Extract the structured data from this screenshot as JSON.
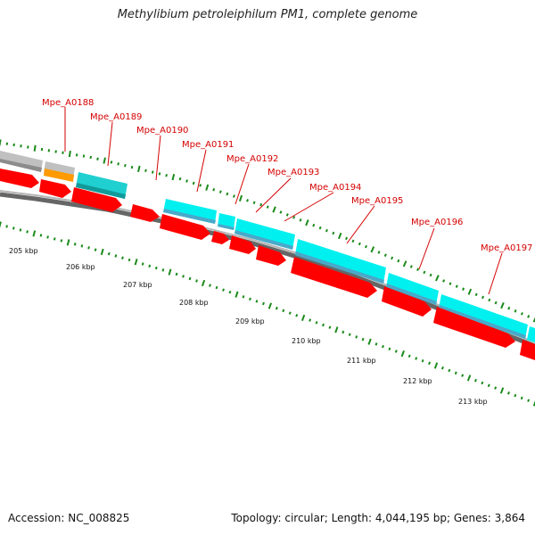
{
  "title": "Methylibium petroleiphilum PM1, complete genome",
  "footer": {
    "accession": "Accession: NC_008825",
    "summary": "Topology: circular; Length: 4,044,195 bp; Genes: 3,864"
  },
  "colors": {
    "cds": "#ff0000",
    "cyan": "#00f0f0",
    "teal": "#20c8c8",
    "orange": "#ff9a00",
    "gray": "#c0c0c0",
    "backbone": "#808080",
    "tick": "#1a8a1a",
    "label": "#d40000"
  },
  "genes": [
    {
      "id": "Mpe_A0188"
    },
    {
      "id": "Mpe_A0189"
    },
    {
      "id": "Mpe_A0190"
    },
    {
      "id": "Mpe_A0191"
    },
    {
      "id": "Mpe_A0192"
    },
    {
      "id": "Mpe_A0193"
    },
    {
      "id": "Mpe_A0194"
    },
    {
      "id": "Mpe_A0195"
    },
    {
      "id": "Mpe_A0196"
    },
    {
      "id": "Mpe_A0197"
    }
  ],
  "scale": {
    "unit": "kbp",
    "labels": [
      "205 kbp",
      "206 kbp",
      "207 kbp",
      "208 kbp",
      "209 kbp",
      "210 kbp",
      "211 kbp",
      "212 kbp",
      "213 kbp"
    ]
  }
}
